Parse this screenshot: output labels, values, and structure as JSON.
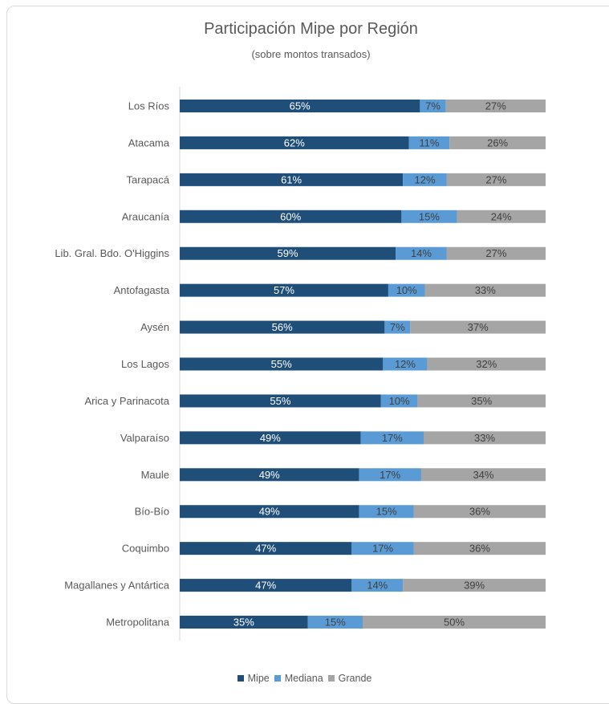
{
  "chart_data": {
    "type": "bar",
    "orientation": "horizontal",
    "stacked": true,
    "percent": true,
    "title": "Participación Mipe por Región",
    "subtitle": "(sobre montos transados)",
    "categories": [
      "Los Ríos",
      "Atacama",
      "Tarapacá",
      "Araucanía",
      "Lib. Gral. Bdo. O'Higgins",
      "Antofagasta",
      "Aysén",
      "Los Lagos",
      "Arica y Parinacota",
      "Valparaíso",
      "Maule",
      "Bío-Bío",
      "Coquimbo",
      "Magallanes y Antártica",
      "Metropolitana"
    ],
    "series": [
      {
        "name": "Mipe",
        "color": "#1f4e79",
        "values": [
          65,
          62,
          61,
          60,
          59,
          57,
          56,
          55,
          55,
          49,
          49,
          49,
          47,
          47,
          35
        ]
      },
      {
        "name": "Mediana",
        "color": "#5b9bd5",
        "values": [
          7,
          11,
          12,
          15,
          14,
          10,
          7,
          12,
          10,
          17,
          17,
          15,
          17,
          14,
          15
        ]
      },
      {
        "name": "Grande",
        "color": "#a5a5a5",
        "values": [
          27,
          26,
          27,
          24,
          27,
          33,
          37,
          32,
          35,
          33,
          34,
          36,
          36,
          39,
          50
        ]
      }
    ],
    "legend_position": "bottom",
    "grid": false
  }
}
